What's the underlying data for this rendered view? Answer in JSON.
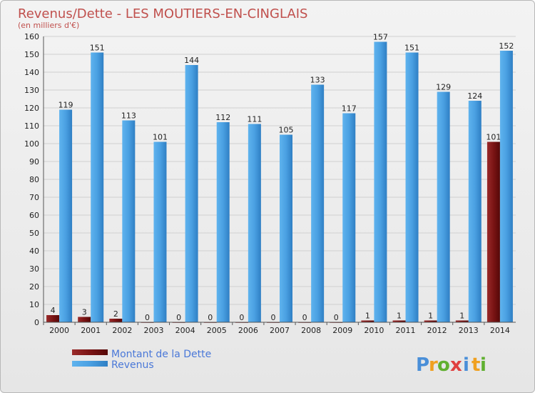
{
  "chart_data": {
    "type": "bar",
    "title": "Revenus/Dette - LES MOUTIERS-EN-CINGLAIS",
    "subtitle": "(en milliers d'€)",
    "categories": [
      "2000",
      "2001",
      "2002",
      "2003",
      "2004",
      "2005",
      "2006",
      "2007",
      "2008",
      "2009",
      "2010",
      "2011",
      "2012",
      "2013",
      "2014"
    ],
    "series": [
      {
        "name": "Montant de la Dette",
        "values": [
          4,
          3,
          2,
          0,
          0,
          0,
          0,
          0,
          0,
          0,
          1,
          1,
          1,
          1,
          101
        ],
        "color": "#7a1414"
      },
      {
        "name": "Revenus",
        "values": [
          119,
          151,
          113,
          101,
          144,
          112,
          111,
          105,
          133,
          117,
          157,
          151,
          129,
          124,
          152
        ],
        "color": "#4aa0e2"
      }
    ],
    "ylim": [
      0,
      160
    ],
    "yticks": [
      0,
      10,
      20,
      30,
      40,
      50,
      60,
      70,
      80,
      90,
      100,
      110,
      120,
      130,
      140,
      150,
      160
    ],
    "grid": true,
    "legend": "bottom-left"
  },
  "logo": {
    "letters": [
      "P",
      "r",
      "o",
      "x",
      "i",
      "t",
      "i"
    ],
    "colors": [
      "#4a8fd8",
      "#f0a020",
      "#60b030",
      "#e04040",
      "#4a8fd8",
      "#f0a020",
      "#60b030"
    ]
  }
}
